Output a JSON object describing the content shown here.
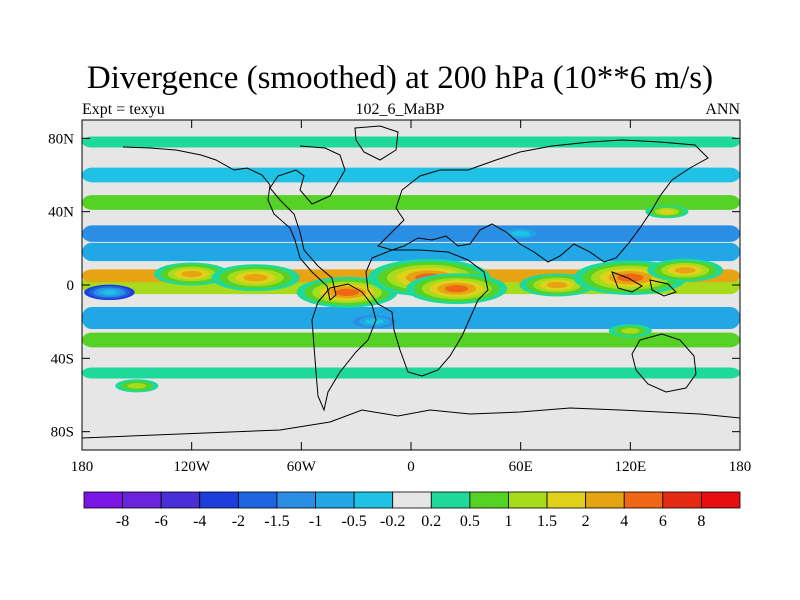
{
  "title": "Divergence (smoothed) at 200 hPa (10**6 m/s)",
  "subtitle_left": "Expt = texyu",
  "subtitle_center": "102_6_MaBP",
  "subtitle_right": "ANN",
  "chart_data": {
    "type": "heatmap",
    "title": "Divergence (smoothed) at 200 hPa (10**6 m/s)",
    "x_ticks": [
      {
        "lon": -180,
        "label": "180"
      },
      {
        "lon": -120,
        "label": "120W"
      },
      {
        "lon": -60,
        "label": "60W"
      },
      {
        "lon": 0,
        "label": "0"
      },
      {
        "lon": 60,
        "label": "60E"
      },
      {
        "lon": 120,
        "label": "120E"
      },
      {
        "lon": 180,
        "label": "180"
      }
    ],
    "y_ticks": [
      {
        "lat": 80,
        "label": "80N"
      },
      {
        "lat": 40,
        "label": "40N"
      },
      {
        "lat": 0,
        "label": "0"
      },
      {
        "lat": -40,
        "label": "40S"
      },
      {
        "lat": -80,
        "label": "80S"
      }
    ],
    "xlim": [
      -180,
      180
    ],
    "ylim": [
      -90,
      90
    ],
    "levels": [
      "-8",
      "-6",
      "-4",
      "-2",
      "-1.5",
      "-1",
      "-0.5",
      "-0.2",
      "0.2",
      "0.5",
      "1",
      "1.5",
      "2",
      "4",
      "6",
      "8"
    ],
    "colors": [
      "#7a16e4",
      "#6a24de",
      "#4b2fd6",
      "#1c3fdb",
      "#1d64e0",
      "#2a8fe4",
      "#22a7e6",
      "#1fc2e4",
      "#e6e6e6",
      "#1fd99a",
      "#55d225",
      "#a6dc1c",
      "#e0d11a",
      "#e6a312",
      "#ef6614",
      "#e52a14",
      "#e80e10"
    ],
    "colorbar_labels": [
      "-8",
      "-6",
      "-4",
      "-2",
      "-1.5",
      "-1",
      "-0.5",
      "-0.2",
      "0.2",
      "0.5",
      "1",
      "1.5",
      "2",
      "4",
      "6",
      "8"
    ],
    "features": [
      {
        "lon": -120,
        "lat": 6,
        "value": 3.0
      },
      {
        "lon": -85,
        "lat": 4,
        "value": 3.5
      },
      {
        "lon": -35,
        "lat": -4,
        "value": 4.0
      },
      {
        "lon": 10,
        "lat": 4,
        "value": 5.5
      },
      {
        "lon": 25,
        "lat": -2,
        "value": 4.0
      },
      {
        "lon": 80,
        "lat": 0,
        "value": 3.0
      },
      {
        "lon": 120,
        "lat": 4,
        "value": 4.5
      },
      {
        "lon": 150,
        "lat": 8,
        "value": 3.0
      },
      {
        "lon": -165,
        "lat": -4,
        "value": -2.0
      },
      {
        "lon": -20,
        "lat": -20,
        "value": -1.2
      },
      {
        "lon": 60,
        "lat": 28,
        "value": -1.0
      },
      {
        "lon": 120,
        "lat": -25,
        "value": 1.2
      },
      {
        "lon": 140,
        "lat": 40,
        "value": 1.5
      },
      {
        "lon": -150,
        "lat": -55,
        "value": 1.0
      }
    ],
    "field_range": [
      -2,
      5.5
    ],
    "grid": false,
    "legend": "bottom"
  }
}
